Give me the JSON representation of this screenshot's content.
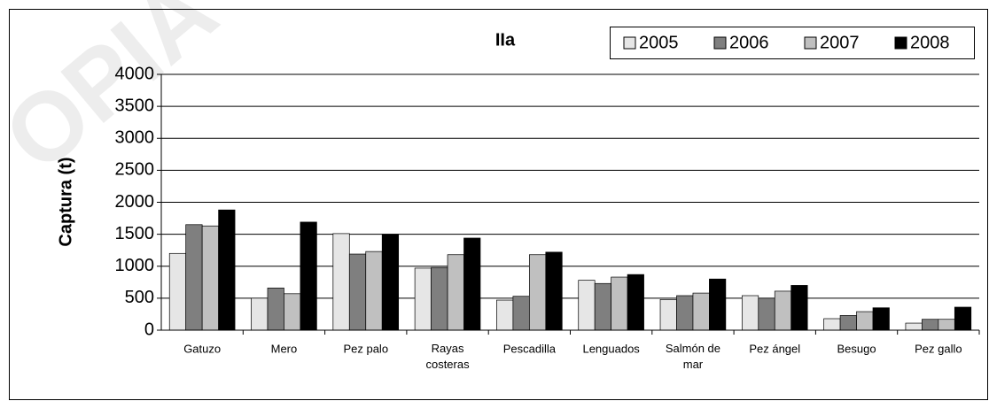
{
  "chart_data": {
    "type": "bar",
    "title": "IIa",
    "y_label": "Captura (t)",
    "watermark": "OPIA",
    "categories": [
      "Gatuzo",
      "Mero",
      "Pez palo",
      "Rayas costeras",
      "Pescadilla",
      "Lenguados",
      "Salmón de mar",
      "Pez ángel",
      "Besugo",
      "Pez gallo"
    ],
    "series": [
      {
        "name": "2005",
        "color": "#e6e6e6",
        "values": [
          1200,
          500,
          1510,
          970,
          470,
          780,
          480,
          540,
          180,
          110
        ]
      },
      {
        "name": "2006",
        "color": "#7f7f7f",
        "values": [
          1650,
          660,
          1190,
          980,
          530,
          730,
          540,
          500,
          230,
          170
        ]
      },
      {
        "name": "2007",
        "color": "#c0c0c0",
        "values": [
          1630,
          570,
          1230,
          1180,
          1180,
          830,
          580,
          610,
          290,
          170
        ]
      },
      {
        "name": "2008",
        "color": "#000000",
        "values": [
          1880,
          1690,
          1500,
          1440,
          1220,
          870,
          800,
          700,
          350,
          360
        ]
      }
    ],
    "ylim": [
      0,
      4000
    ],
    "yticks": [
      0,
      500,
      1000,
      1500,
      2000,
      2500,
      3000,
      3500,
      4000
    ],
    "grid": true
  }
}
